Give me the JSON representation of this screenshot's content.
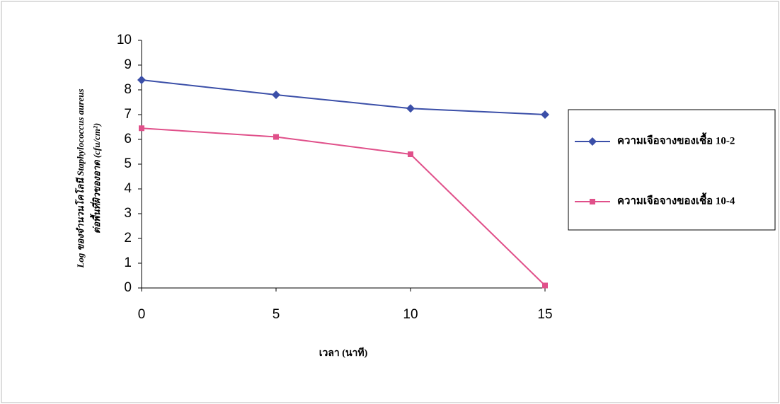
{
  "chart_data": {
    "type": "line",
    "x": [
      0,
      5,
      10,
      15
    ],
    "xlim": [
      0,
      15
    ],
    "xticks": [
      0,
      5,
      10,
      15
    ],
    "ylim": [
      0,
      10
    ],
    "yticks": [
      0,
      1,
      2,
      3,
      4,
      5,
      6,
      7,
      8,
      9,
      10
    ],
    "x_label": "เวลา (นาที)",
    "y_label": [
      "Log ของจำนวนโคโลนี Staphylococcus aureus",
      "ต่อพื้นที่ผิวของอาด (cfu/cm²)"
    ],
    "series": [
      {
        "name": "ความเจือจางของเชื้อ 10-2",
        "color": "#3b4fa8",
        "marker": "diamond",
        "values": [
          8.4,
          7.8,
          7.25,
          7.0
        ]
      },
      {
        "name": "ความเจือจางของเชื้อ 10-4",
        "color": "#e0508a",
        "marker": "square",
        "values": [
          6.45,
          6.1,
          5.4,
          0.1
        ]
      }
    ],
    "legend": "right"
  }
}
